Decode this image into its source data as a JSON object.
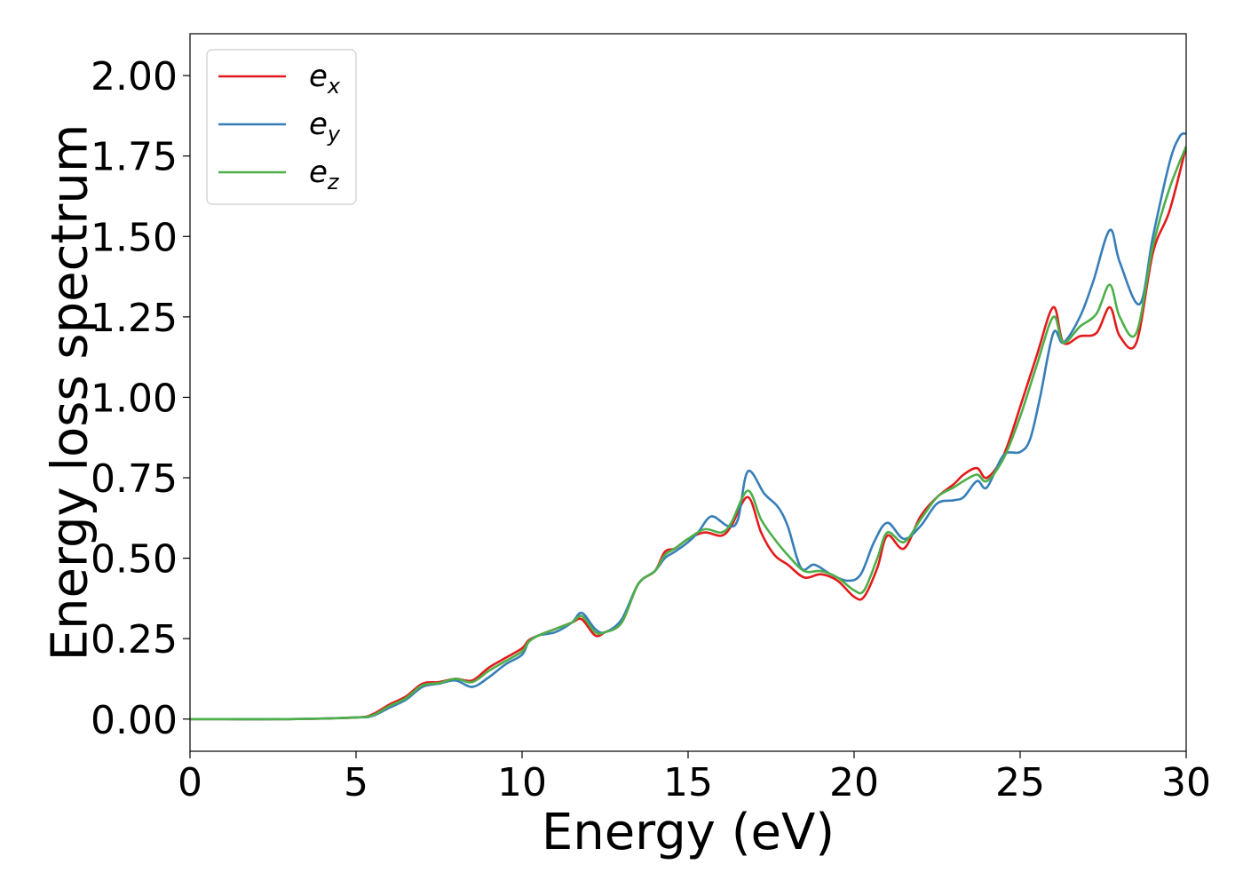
{
  "chart_data": {
    "type": "line",
    "title": "",
    "xlabel": "Energy (eV)",
    "ylabel": "Energy loss spectrum",
    "xlim": [
      0,
      30
    ],
    "ylim": [
      -0.1,
      2.13
    ],
    "xticks": [
      "0",
      "5",
      "10",
      "15",
      "20",
      "25",
      "30"
    ],
    "xtick_values": [
      0,
      5,
      10,
      15,
      20,
      25,
      30
    ],
    "yticks": [
      "0.00",
      "0.25",
      "0.50",
      "0.75",
      "1.00",
      "1.25",
      "1.50",
      "1.75",
      "2.00"
    ],
    "ytick_values": [
      0,
      0.25,
      0.5,
      0.75,
      1.0,
      1.25,
      1.5,
      1.75,
      2.0
    ],
    "grid": false,
    "legend_position": "top-left",
    "series": [
      {
        "name": "e_x",
        "legend_base": "e",
        "legend_sub": "x",
        "color": "#e41a1c",
        "x": [
          0,
          3,
          5,
          5.5,
          6,
          6.5,
          7,
          7.5,
          8,
          8.5,
          9,
          9.5,
          10,
          10.2,
          10.5,
          11,
          11.5,
          11.8,
          12.2,
          12.5,
          13,
          13.5,
          14,
          14.3,
          14.6,
          15,
          15.5,
          16,
          16.3,
          16.8,
          17.2,
          17.6,
          18,
          18.5,
          19,
          19.5,
          20,
          20.3,
          20.7,
          21,
          21.5,
          22,
          22.5,
          23,
          23.3,
          23.7,
          24,
          24.5,
          25,
          25.5,
          26,
          26.3,
          26.8,
          27.3,
          27.7,
          28,
          28.5,
          29,
          29.5,
          30
        ],
        "y": [
          0.0,
          0.0,
          0.005,
          0.015,
          0.045,
          0.07,
          0.11,
          0.115,
          0.125,
          0.12,
          0.16,
          0.19,
          0.22,
          0.245,
          0.26,
          0.28,
          0.3,
          0.31,
          0.26,
          0.27,
          0.3,
          0.42,
          0.46,
          0.52,
          0.53,
          0.56,
          0.58,
          0.57,
          0.6,
          0.69,
          0.58,
          0.51,
          0.48,
          0.44,
          0.45,
          0.43,
          0.38,
          0.38,
          0.47,
          0.57,
          0.53,
          0.63,
          0.69,
          0.73,
          0.76,
          0.78,
          0.75,
          0.82,
          0.97,
          1.13,
          1.28,
          1.17,
          1.19,
          1.2,
          1.28,
          1.19,
          1.17,
          1.45,
          1.58,
          1.78
        ]
      },
      {
        "name": "e_y",
        "legend_base": "e",
        "legend_sub": "y",
        "color": "#377eb8",
        "x": [
          0,
          3,
          5,
          5.5,
          6,
          6.5,
          7,
          7.5,
          8,
          8.5,
          9,
          9.5,
          10,
          10.2,
          10.5,
          11,
          11.5,
          11.8,
          12.2,
          12.5,
          13,
          13.5,
          14,
          14.3,
          14.6,
          15,
          15.3,
          15.7,
          16.2,
          16.5,
          16.8,
          17.3,
          17.7,
          18,
          18.4,
          18.8,
          19.3,
          19.8,
          20.2,
          20.6,
          21,
          21.5,
          22,
          22.5,
          23,
          23.3,
          23.7,
          24,
          24.5,
          25,
          25.3,
          25.6,
          26,
          26.3,
          26.8,
          27.2,
          27.7,
          28,
          28.6,
          29,
          29.5,
          29.8,
          30
        ],
        "y": [
          0.0,
          0.0,
          0.005,
          0.01,
          0.035,
          0.06,
          0.1,
          0.11,
          0.12,
          0.1,
          0.13,
          0.17,
          0.2,
          0.24,
          0.26,
          0.27,
          0.3,
          0.33,
          0.28,
          0.27,
          0.31,
          0.42,
          0.46,
          0.5,
          0.52,
          0.55,
          0.58,
          0.63,
          0.6,
          0.62,
          0.77,
          0.7,
          0.66,
          0.6,
          0.47,
          0.48,
          0.45,
          0.43,
          0.45,
          0.55,
          0.61,
          0.56,
          0.6,
          0.67,
          0.68,
          0.69,
          0.74,
          0.72,
          0.82,
          0.83,
          0.87,
          1.0,
          1.2,
          1.17,
          1.25,
          1.36,
          1.52,
          1.42,
          1.29,
          1.5,
          1.73,
          1.81,
          1.82
        ]
      },
      {
        "name": "e_z",
        "legend_base": "e",
        "legend_sub": "z",
        "color": "#4daf4a",
        "x": [
          0,
          3,
          5,
          5.5,
          6,
          6.5,
          7,
          7.5,
          8,
          8.5,
          9,
          9.5,
          10,
          10.2,
          10.5,
          11,
          11.5,
          11.8,
          12.2,
          12.5,
          13,
          13.5,
          14,
          14.3,
          14.6,
          15,
          15.5,
          16,
          16.3,
          16.8,
          17.2,
          17.6,
          18,
          18.5,
          19,
          19.5,
          20,
          20.3,
          20.7,
          21,
          21.5,
          22,
          22.5,
          23,
          23.3,
          23.7,
          24,
          24.5,
          25,
          25.5,
          26,
          26.3,
          26.8,
          27.3,
          27.7,
          28,
          28.5,
          29,
          29.5,
          30
        ],
        "y": [
          0.0,
          0.0,
          0.005,
          0.012,
          0.04,
          0.065,
          0.105,
          0.112,
          0.125,
          0.115,
          0.15,
          0.18,
          0.21,
          0.24,
          0.26,
          0.28,
          0.3,
          0.32,
          0.27,
          0.27,
          0.3,
          0.42,
          0.46,
          0.51,
          0.53,
          0.56,
          0.59,
          0.58,
          0.61,
          0.71,
          0.62,
          0.56,
          0.51,
          0.46,
          0.46,
          0.44,
          0.4,
          0.4,
          0.5,
          0.58,
          0.55,
          0.62,
          0.69,
          0.72,
          0.74,
          0.76,
          0.74,
          0.81,
          0.94,
          1.1,
          1.25,
          1.17,
          1.22,
          1.26,
          1.35,
          1.25,
          1.2,
          1.47,
          1.65,
          1.78
        ]
      }
    ]
  }
}
